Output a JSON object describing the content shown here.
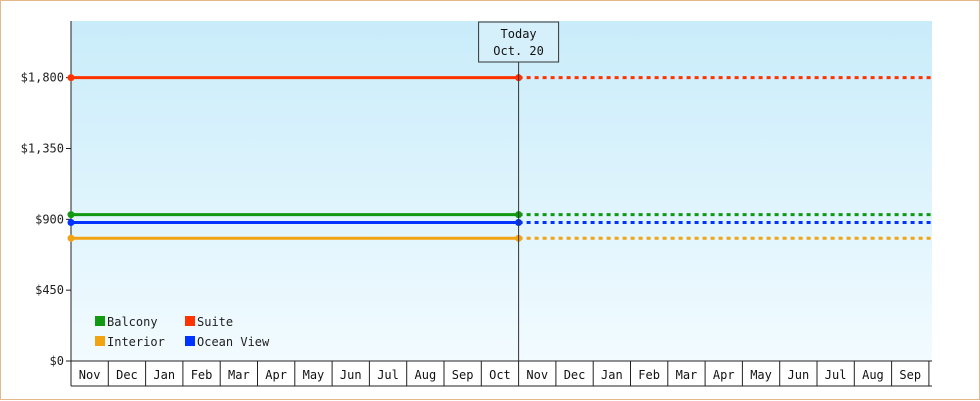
{
  "chart_data": {
    "type": "line",
    "title": "",
    "xlabel": "",
    "ylabel": "",
    "ylim": [
      0,
      2160
    ],
    "y_ticks": [
      0,
      450,
      900,
      1350,
      1800
    ],
    "y_tick_labels": [
      "$0",
      "$450",
      "$900",
      "$1,350",
      "$1,800"
    ],
    "x_categories": [
      "Nov",
      "Dec",
      "Jan",
      "Feb",
      "Mar",
      "Apr",
      "May",
      "Jun",
      "Jul",
      "Aug",
      "Sep",
      "Oct",
      "Nov",
      "Dec",
      "Jan",
      "Feb",
      "Mar",
      "Apr",
      "May",
      "Jun",
      "Jul",
      "Aug",
      "Sep"
    ],
    "today_marker": {
      "line1": "Today",
      "line2": "Oct. 20",
      "index": 11
    },
    "series": [
      {
        "name": "Suite",
        "color": "#ff3300",
        "value": 1800
      },
      {
        "name": "Balcony",
        "color": "#119911",
        "value": 930
      },
      {
        "name": "Ocean View",
        "color": "#0033ff",
        "value": 880
      },
      {
        "name": "Interior",
        "color": "#f2a312",
        "value": 780
      }
    ],
    "legend": {
      "placement": "bottom-left",
      "order": [
        "Balcony",
        "Suite",
        "Interior",
        "Ocean View"
      ]
    },
    "solid_until": "today",
    "projection_style": "dotted",
    "grid": false
  }
}
